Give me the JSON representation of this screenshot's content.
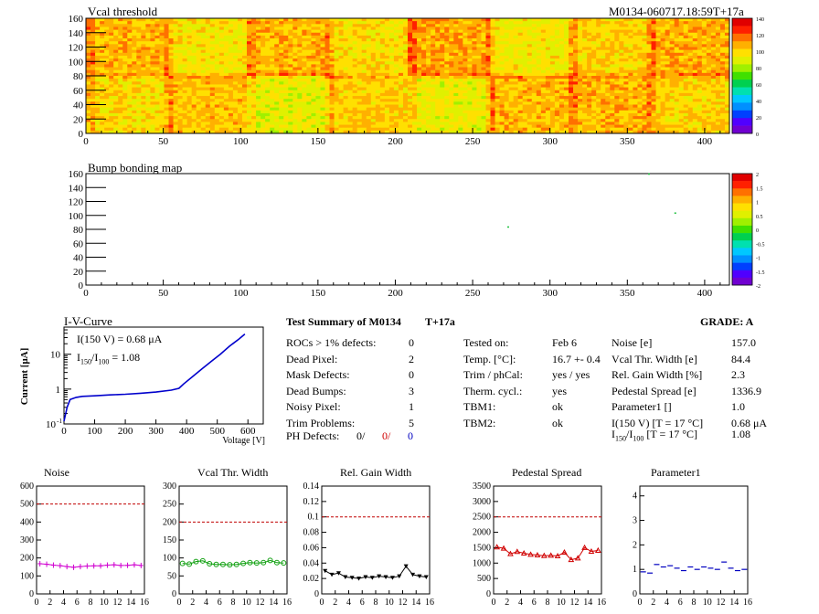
{
  "header": {
    "left_title": "Vcal threshold",
    "right_title": "M0134-060717.18:59T+17a"
  },
  "bump_title": "Bump bonding map",
  "map_axes": {
    "y_ticks": [
      "0",
      "20",
      "40",
      "60",
      "80",
      "100",
      "120",
      "140",
      "160"
    ],
    "x_ticks": [
      "0",
      "50",
      "100",
      "150",
      "200",
      "250",
      "300",
      "350",
      "400"
    ]
  },
  "vcal_palette": [
    "0",
    "20",
    "40",
    "60",
    "80",
    "100",
    "120",
    "140"
  ],
  "bump_palette": [
    "-2",
    "-1.5",
    "-1",
    "-0.5",
    "0",
    "0.5",
    "1",
    "1.5",
    "2"
  ],
  "iv": {
    "title": "I-V-Curve",
    "ylabel": "Current [μA]",
    "xlabel": "Voltage [V]",
    "info1": "I(150 V) = 0.68 μA",
    "info2": "I",
    "info2_sub1": "150",
    "info2_mid": "/I",
    "info2_sub2": "100",
    "info2_val": " =  1.08",
    "y_ticks": [
      "10",
      "1",
      "10"
    ],
    "y_tick_exp": "-1",
    "x_ticks": [
      "0",
      "100",
      "200",
      "300",
      "400",
      "500",
      "600"
    ]
  },
  "summary": {
    "title": "Test Summary of M0134",
    "tag": "T+17a",
    "grade": "GRADE:  A",
    "col1": [
      {
        "label": "ROCs > 1% defects:",
        "value": "0"
      },
      {
        "label": "Dead Pixel:",
        "value": "2"
      },
      {
        "label": "Mask Defects:",
        "value": "0"
      },
      {
        "label": "Dead Bumps:",
        "value": "3"
      },
      {
        "label": "Noisy Pixel:",
        "value": "1"
      },
      {
        "label": "Trim Problems:",
        "value": "5"
      }
    ],
    "ph_label": "PH Defects:",
    "ph_v1": "0/",
    "ph_v2": "0/",
    "ph_v3": "0",
    "col2": [
      {
        "label": "Tested on:",
        "value": "Feb 6"
      },
      {
        "label": "Temp. [°C]:",
        "value": "16.7 +- 0.4"
      },
      {
        "label": "Trim / phCal:",
        "value": "yes / yes"
      },
      {
        "label": "Therm. cycl.:",
        "value": "yes"
      },
      {
        "label": "TBM1:",
        "value": "ok"
      },
      {
        "label": "TBM2:",
        "value": "ok"
      }
    ],
    "col3": [
      {
        "label": "Noise [e]",
        "value": "157.0"
      },
      {
        "label": "Vcal Thr. Width [e]",
        "value": "84.4"
      },
      {
        "label": "Rel. Gain Width [%]",
        "value": "2.3"
      },
      {
        "label": "Pedestal Spread [e]",
        "value": "1336.9"
      },
      {
        "label": "Parameter1 []",
        "value": "1.0"
      },
      {
        "label": "I(150 V) [T = 17 °C]",
        "value": "0.68 μA"
      }
    ],
    "last_label_a": "I",
    "last_sub1": "150",
    "last_mid": "/I",
    "last_sub2": "100",
    "last_label_b": "  [T = 17 °C]",
    "last_value": "1.08"
  },
  "chart_data": [
    {
      "type": "heatmap",
      "title": "Vcal threshold",
      "x_range": [
        0,
        416
      ],
      "y_range": [
        0,
        160
      ],
      "color_scale": [
        0,
        140
      ],
      "description_values": "per-pixel Vcal threshold, mostly 70-110"
    },
    {
      "type": "heatmap",
      "title": "Bump bonding map",
      "x_range": [
        0,
        416
      ],
      "y_range": [
        0,
        160
      ],
      "color_scale": [
        -2,
        2
      ],
      "points": [
        [
          273,
          83
        ],
        [
          364,
          159
        ],
        [
          381,
          103
        ]
      ]
    },
    {
      "type": "line",
      "title": "I-V-Curve",
      "xlabel": "Voltage [V]",
      "ylabel": "Current [μA]",
      "log_y": true,
      "xlim": [
        0,
        650
      ],
      "ylim": [
        0.1,
        60
      ],
      "x": [
        0,
        10,
        20,
        40,
        60,
        100,
        150,
        200,
        250,
        300,
        350,
        375,
        390,
        420,
        450,
        480,
        510,
        540,
        570,
        590
      ],
      "y": [
        0.12,
        0.3,
        0.5,
        0.58,
        0.62,
        0.64,
        0.68,
        0.71,
        0.76,
        0.82,
        0.93,
        1.05,
        1.4,
        2.3,
        3.8,
        6.2,
        10,
        17,
        27,
        38
      ]
    },
    {
      "type": "line",
      "title": "Noise",
      "x": [
        0,
        1,
        2,
        3,
        4,
        5,
        6,
        7,
        8,
        9,
        10,
        11,
        12,
        13,
        14,
        15
      ],
      "y": [
        168,
        165,
        160,
        157,
        152,
        148,
        152,
        155,
        156,
        156,
        160,
        162,
        158,
        159,
        162,
        158
      ],
      "ylim": [
        0,
        600
      ],
      "limit": 500,
      "color": "#d000d0",
      "y_ticks": [
        "0",
        "100",
        "200",
        "300",
        "400",
        "500",
        "600"
      ]
    },
    {
      "type": "line",
      "title": "Vcal Thr. Width",
      "x": [
        0,
        1,
        2,
        3,
        4,
        5,
        6,
        7,
        8,
        9,
        10,
        11,
        12,
        13,
        14,
        15
      ],
      "y": [
        85,
        83,
        90,
        92,
        84,
        82,
        82,
        81,
        82,
        85,
        87,
        86,
        87,
        93,
        87,
        86
      ],
      "ylim": [
        0,
        300
      ],
      "limit": 200,
      "color": "#10a010",
      "y_ticks": [
        "0",
        "50",
        "100",
        "150",
        "200",
        "250",
        "300"
      ]
    },
    {
      "type": "line",
      "title": "Rel. Gain Width",
      "x": [
        0,
        1,
        2,
        3,
        4,
        5,
        6,
        7,
        8,
        9,
        10,
        11,
        12,
        13,
        14,
        15
      ],
      "y": [
        0.03,
        0.025,
        0.027,
        0.022,
        0.021,
        0.02,
        0.022,
        0.021,
        0.023,
        0.022,
        0.021,
        0.023,
        0.036,
        0.025,
        0.023,
        0.022
      ],
      "ylim": [
        0,
        0.14
      ],
      "limit": 0.1,
      "color": "#000000",
      "y_ticks": [
        "0",
        "0.02",
        "0.04",
        "0.06",
        "0.08",
        "0.1",
        "0.12",
        "0.14"
      ]
    },
    {
      "type": "line",
      "title": "Pedestal Spread",
      "x": [
        0,
        1,
        2,
        3,
        4,
        5,
        6,
        7,
        8,
        9,
        10,
        11,
        12,
        13,
        14,
        15
      ],
      "y": [
        1520,
        1480,
        1300,
        1370,
        1320,
        1280,
        1260,
        1240,
        1250,
        1230,
        1350,
        1110,
        1160,
        1500,
        1380,
        1410
      ],
      "ylim": [
        0,
        3500
      ],
      "limit": 2500,
      "color": "#d00000",
      "y_ticks": [
        "0",
        "500",
        "1000",
        "1500",
        "2000",
        "2500",
        "3000",
        "3500"
      ]
    },
    {
      "type": "line",
      "title": "Parameter1",
      "x": [
        0,
        1,
        2,
        3,
        4,
        5,
        6,
        7,
        8,
        9,
        10,
        11,
        12,
        13,
        14,
        15
      ],
      "y": [
        0.9,
        0.85,
        1.2,
        1.1,
        1.15,
        1.05,
        0.95,
        1.1,
        1.0,
        1.1,
        1.05,
        1.0,
        1.3,
        1.05,
        0.95,
        1.0
      ],
      "ylim": [
        0,
        4.4
      ],
      "color": "#0000c0",
      "y_ticks": [
        "0",
        "1",
        "2",
        "3",
        "4"
      ]
    }
  ],
  "small_x_ticks": [
    "0",
    "2",
    "4",
    "6",
    "8",
    "10",
    "12",
    "14",
    "16"
  ]
}
